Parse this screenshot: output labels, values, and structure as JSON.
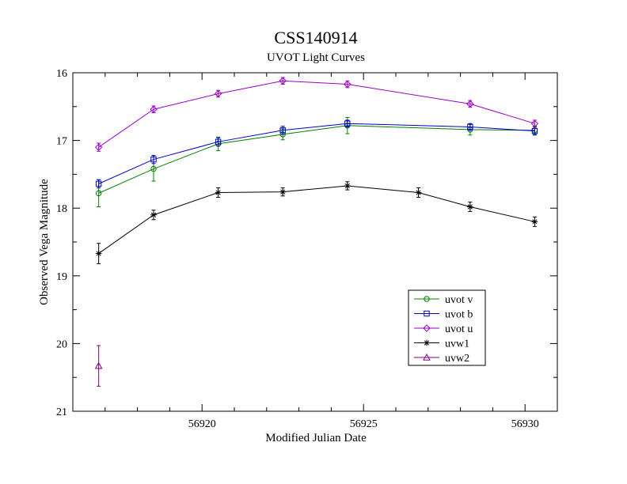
{
  "chart_data": {
    "type": "line",
    "title": "CSS140914",
    "subtitle": "UVOT Light Curves",
    "xlabel": "Modified Julian Date",
    "ylabel": "Observed Vega Magnitude",
    "xlim": [
      56916,
      56931
    ],
    "ylim": [
      16,
      21
    ],
    "y_inverted": true,
    "x_ticks": [
      56920,
      56925,
      56930
    ],
    "y_ticks": [
      16,
      17,
      18,
      19,
      20,
      21
    ],
    "grid": false,
    "legend_position": "lower-right",
    "series": [
      {
        "name": "uvot v",
        "color": "#008000",
        "marker": "circle",
        "x": [
          56916.8,
          56918.5,
          56920.5,
          56922.5,
          56924.5,
          56928.3,
          56930.3
        ],
        "y": [
          17.78,
          17.42,
          17.05,
          16.91,
          16.78,
          16.84,
          16.85
        ],
        "err": [
          0.2,
          0.18,
          0.1,
          0.08,
          0.12,
          0.08,
          0.06
        ]
      },
      {
        "name": "uvot b",
        "color": "#0000cc",
        "marker": "square",
        "x": [
          56916.8,
          56918.5,
          56920.5,
          56922.5,
          56924.5,
          56928.3,
          56930.3
        ],
        "y": [
          17.64,
          17.28,
          17.02,
          16.85,
          16.75,
          16.8,
          16.86
        ],
        "err": [
          0.06,
          0.06,
          0.06,
          0.06,
          0.05,
          0.05,
          0.06
        ]
      },
      {
        "name": "uvot u",
        "color": "#9900cc",
        "marker": "diamond",
        "x": [
          56916.8,
          56918.5,
          56920.5,
          56922.5,
          56924.5,
          56928.3,
          56930.3
        ],
        "y": [
          17.1,
          16.54,
          16.31,
          16.12,
          16.17,
          16.46,
          16.75
        ],
        "err": [
          0.06,
          0.05,
          0.05,
          0.05,
          0.05,
          0.05,
          0.05
        ]
      },
      {
        "name": "uvw1",
        "color": "#000000",
        "marker": "star",
        "x": [
          56916.8,
          56918.5,
          56920.5,
          56922.5,
          56924.5,
          56926.7,
          56928.3,
          56930.3
        ],
        "y": [
          18.67,
          18.1,
          17.77,
          17.76,
          17.67,
          17.77,
          17.98,
          18.2
        ],
        "err": [
          0.15,
          0.07,
          0.07,
          0.06,
          0.06,
          0.07,
          0.07,
          0.07
        ]
      },
      {
        "name": "uvw2",
        "color": "#800080",
        "marker": "triangle",
        "x": [
          56916.8
        ],
        "y": [
          20.33
        ],
        "err": [
          0.3
        ]
      }
    ]
  }
}
